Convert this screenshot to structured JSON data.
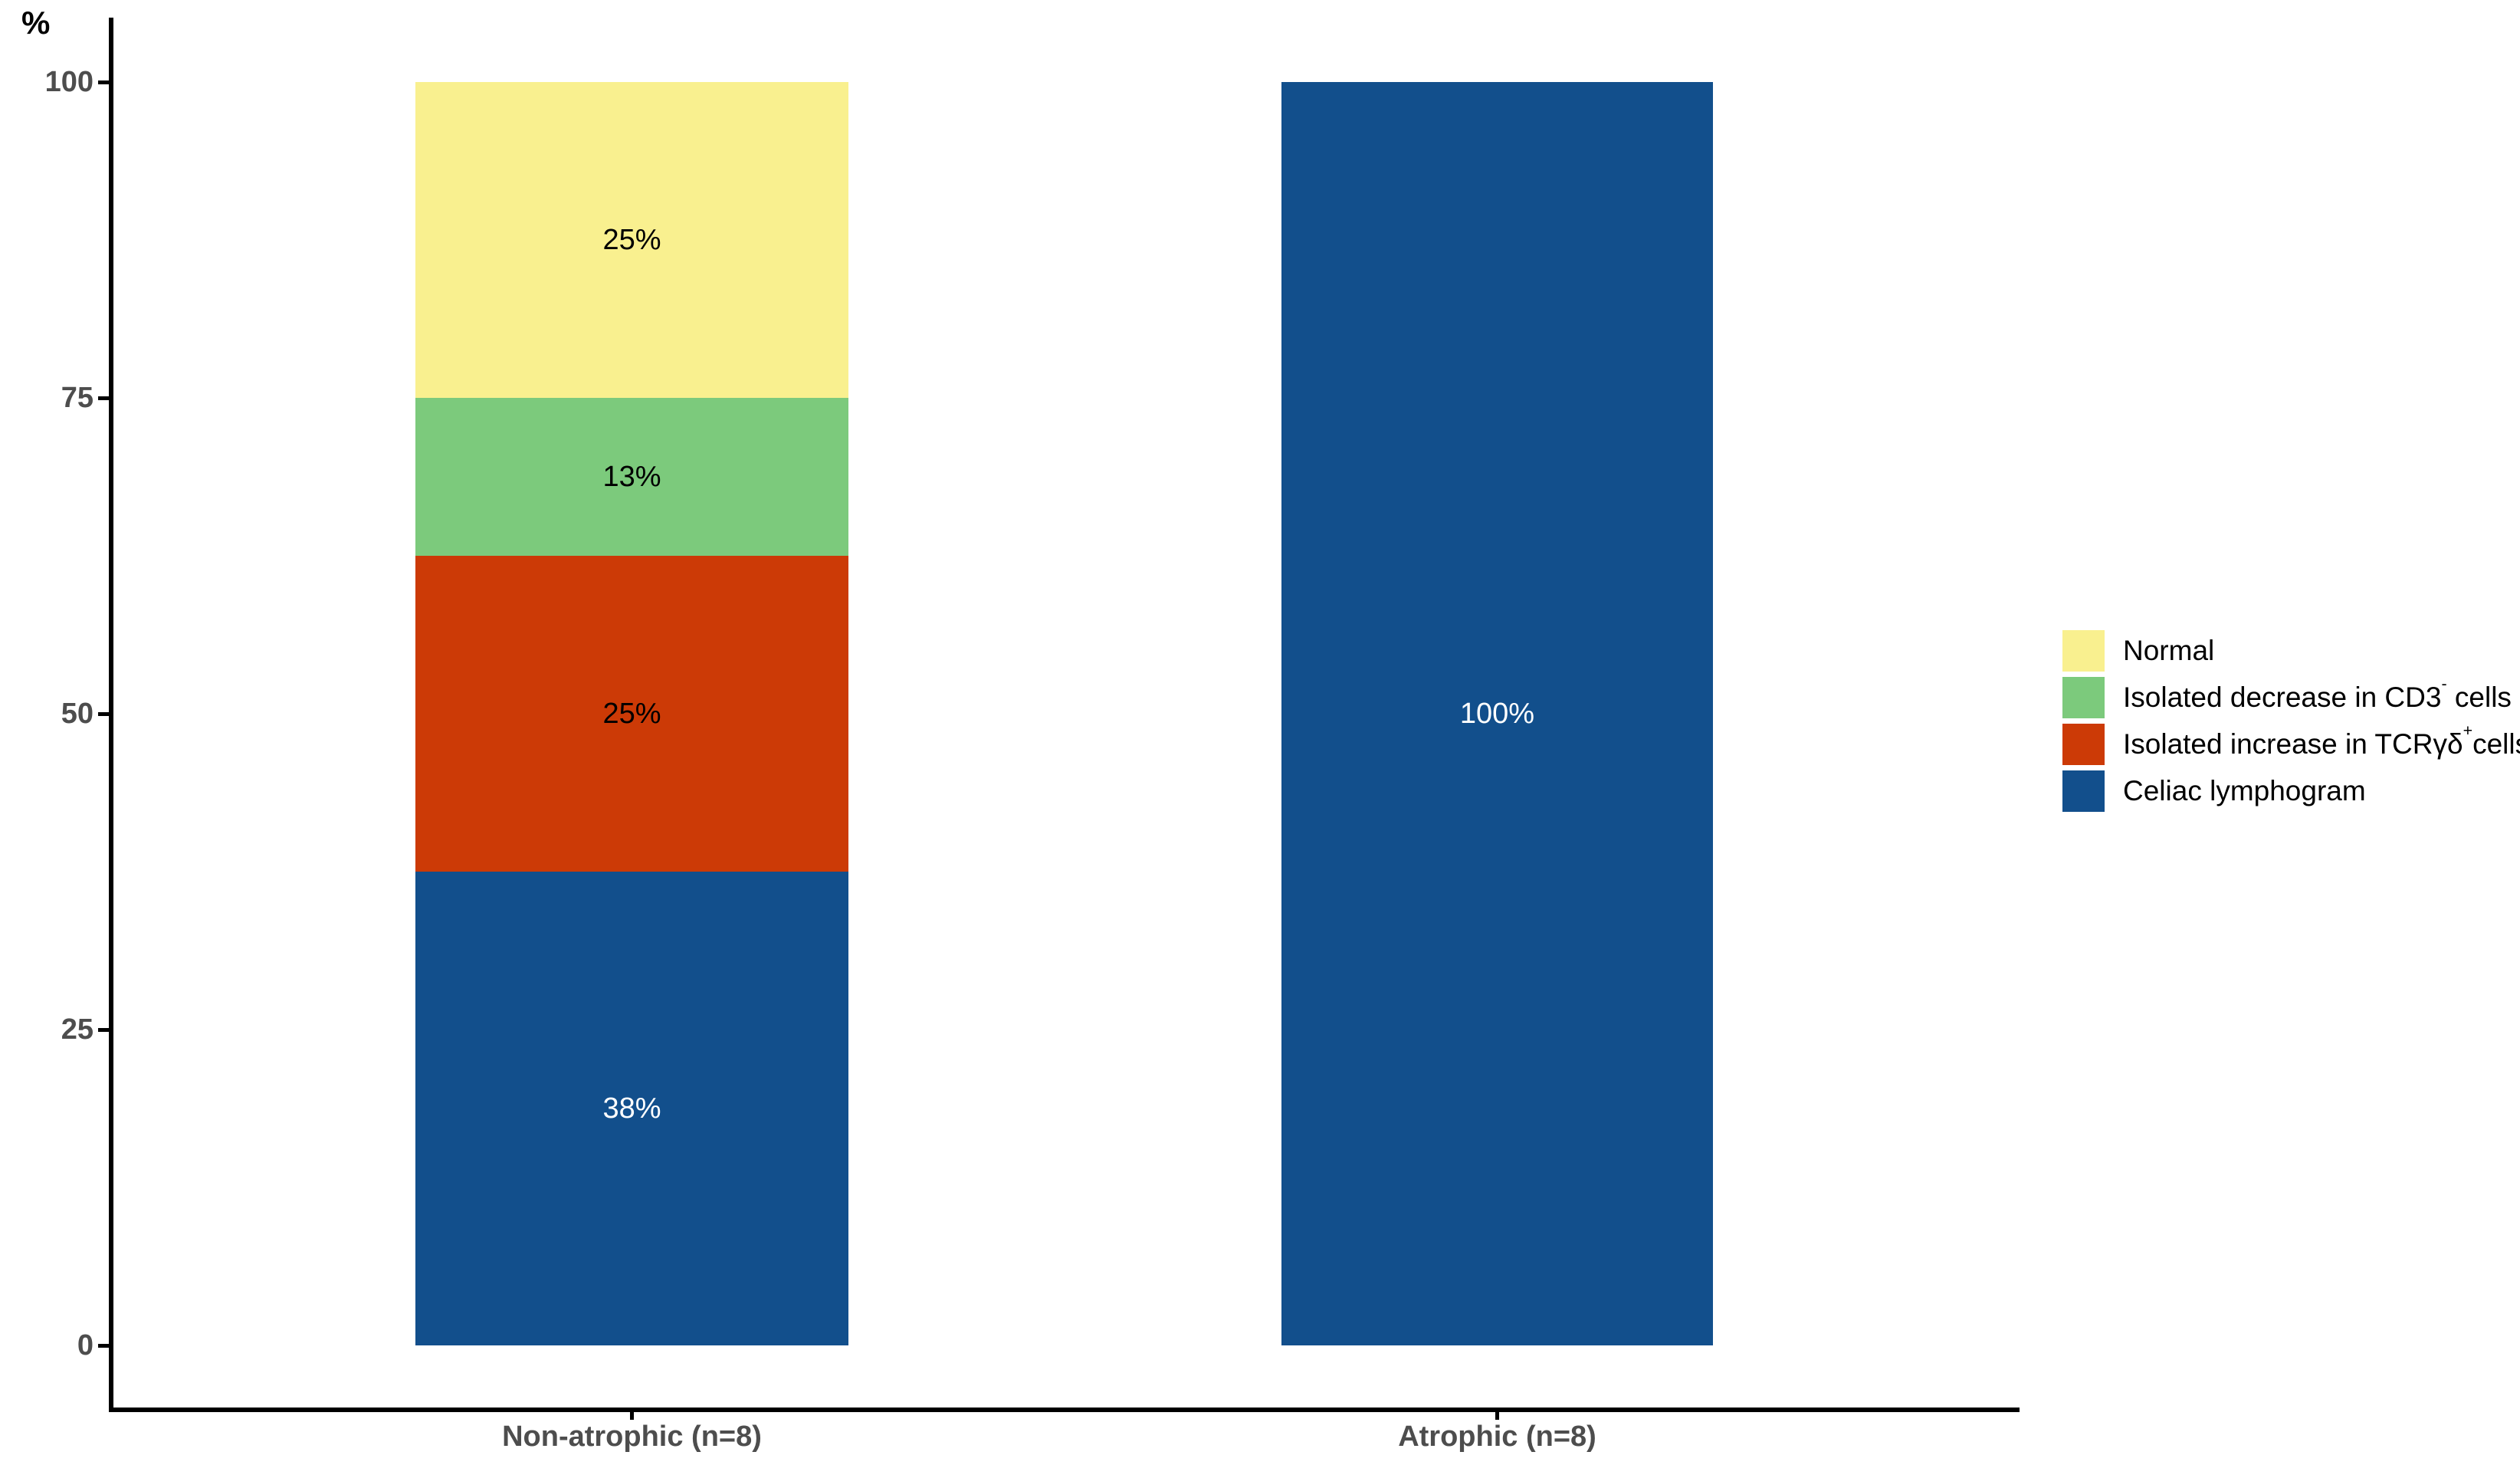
{
  "chart_data": {
    "type": "bar",
    "stacked": true,
    "title": "",
    "xlabel": "",
    "ylabel": "%",
    "ylim": [
      0,
      100
    ],
    "yticks": [
      0,
      25,
      50,
      75,
      100
    ],
    "grid": false,
    "legend_position": "right",
    "categories": [
      "Non-atrophic (n=8)",
      "Atrophic (n=8)"
    ],
    "series": [
      {
        "name": "Celiac lymphogram",
        "color": "#124F8C",
        "values": [
          37.5,
          100
        ],
        "value_labels": [
          "38%",
          "100%"
        ],
        "label_color": "#ffffff"
      },
      {
        "name": "Isolated increase in TCRγδ+ cells",
        "color": "#CC3A06",
        "values": [
          25,
          0
        ],
        "value_labels": [
          "25%",
          ""
        ],
        "label_color": "#000000"
      },
      {
        "name": "Isolated decrease in CD3- cells",
        "color": "#7CCA7C",
        "values": [
          12.5,
          0
        ],
        "value_labels": [
          "13%",
          ""
        ],
        "label_color": "#000000"
      },
      {
        "name": "Normal",
        "color": "#F9F08F",
        "values": [
          25,
          0
        ],
        "value_labels": [
          "25%",
          ""
        ],
        "label_color": "#000000"
      }
    ]
  },
  "legend": {
    "items": [
      {
        "color": "#F9F08F",
        "parts": [
          {
            "text": "Normal"
          }
        ]
      },
      {
        "color": "#7CCA7C",
        "parts": [
          {
            "text": "Isolated decrease in CD3"
          },
          {
            "text": "-",
            "sup": true
          },
          {
            "text": " cells"
          }
        ]
      },
      {
        "color": "#CC3A06",
        "parts": [
          {
            "text": "Isolated increase in TCRγδ"
          },
          {
            "text": "+",
            "sup": true
          },
          {
            "text": "cells"
          }
        ]
      },
      {
        "color": "#124F8C",
        "parts": [
          {
            "text": "Celiac lymphogram"
          }
        ]
      }
    ]
  }
}
